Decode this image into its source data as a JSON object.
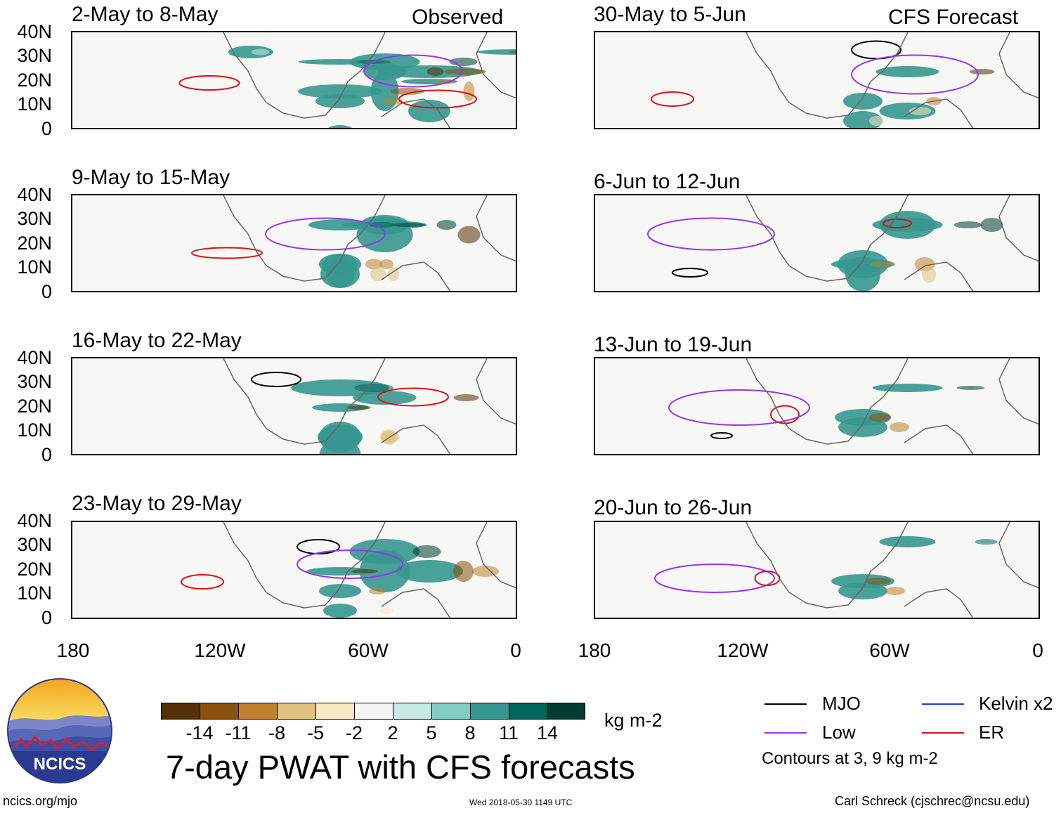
{
  "headers": {
    "observed": "Observed",
    "forecast": "CFS Forecast"
  },
  "panels_left": [
    {
      "title": "2-May to 8-May"
    },
    {
      "title": "9-May to 15-May"
    },
    {
      "title": "16-May to 22-May"
    },
    {
      "title": "23-May to 29-May"
    }
  ],
  "panels_right": [
    {
      "title": "30-May to 5-Jun"
    },
    {
      "title": "6-Jun to 12-Jun"
    },
    {
      "title": "13-Jun to 19-Jun"
    },
    {
      "title": "20-Jun to 26-Jun"
    }
  ],
  "lat_labels": [
    "40N",
    "30N",
    "20N",
    "10N",
    "0"
  ],
  "lon_labels": [
    "180",
    "120W",
    "60W",
    "0"
  ],
  "colorbar": {
    "colors": [
      "#543005",
      "#8c510a",
      "#bf812d",
      "#dfc27d",
      "#f6e8c3",
      "#f5f5f5",
      "#c7eae5",
      "#80cdc1",
      "#35978f",
      "#01665e",
      "#003c30"
    ],
    "labels": [
      "-14",
      "-11",
      "-8",
      "-5",
      "-2",
      "2",
      "5",
      "8",
      "11",
      "14"
    ],
    "units": "kg m-2"
  },
  "main_title": "7-day PWAT with CFS forecasts",
  "legend": {
    "items": [
      {
        "label": "MJO",
        "color": "#000000"
      },
      {
        "label": "Kelvin x2",
        "color": "#1f3fd6"
      },
      {
        "label": "Low",
        "color": "#9933ee"
      },
      {
        "label": "ER",
        "color": "#dd1111"
      }
    ],
    "note": "Contours at 3, 9 kg m-2"
  },
  "logo_text": "NCICS",
  "footer": {
    "url": "ncics.org/mjo",
    "timestamp": "Wed 2018-05-30 1149 UTC",
    "credit": "Carl Schreck (cjschrec@ncsu.edu)"
  }
}
